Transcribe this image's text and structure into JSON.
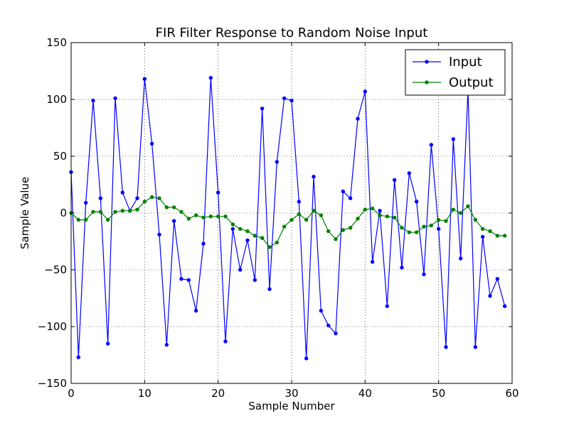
{
  "colors": {
    "input": "#0000ff",
    "output": "#008000",
    "grid": "#000000",
    "frame": "#000000",
    "background": "#ffffff"
  },
  "chart_data": {
    "type": "line",
    "title": "FIR Filter Response to Random Noise Input",
    "xlabel": "Sample Number",
    "ylabel": "Sample Value",
    "xlim": [
      0,
      60
    ],
    "ylim": [
      -150,
      150
    ],
    "xticks": [
      0,
      10,
      20,
      30,
      40,
      50,
      60
    ],
    "yticks": [
      -150,
      -100,
      -50,
      0,
      50,
      100,
      150
    ],
    "xtick_labels": [
      "0",
      "10",
      "20",
      "30",
      "40",
      "50",
      "60"
    ],
    "ytick_labels": [
      "−150",
      "−100",
      "−50",
      "0",
      "50",
      "100",
      "150"
    ],
    "grid": true,
    "legend_position": "top-right",
    "series": [
      {
        "name": "Input",
        "color": "#0000ff",
        "values": [
          36,
          -127,
          9,
          99,
          13,
          -115,
          101,
          18,
          2,
          13,
          118,
          61,
          -19,
          -116,
          -7,
          -58,
          -59,
          -86,
          -27,
          119,
          18,
          -113,
          -14,
          -50,
          -24,
          -59,
          92,
          -67,
          45,
          101,
          99,
          10,
          -128,
          32,
          -86,
          -99,
          -106,
          19,
          13,
          83,
          107,
          -43,
          2,
          -82,
          29,
          -48,
          35,
          10,
          -54,
          60,
          -14,
          -118,
          65,
          -40,
          108,
          -118,
          -21,
          -73,
          -58,
          -82
        ]
      },
      {
        "name": "Output",
        "color": "#008000",
        "values": [
          0,
          -6,
          -6,
          1,
          1,
          -6,
          1,
          2,
          2,
          3,
          10,
          14,
          13,
          5,
          5,
          1,
          -5,
          -2,
          -4,
          -3,
          -3,
          -3,
          -10,
          -14,
          -16,
          -20,
          -22,
          -30,
          -26,
          -12,
          -6,
          -1,
          -6,
          2,
          -2,
          -16,
          -23,
          -15,
          -13,
          -5,
          3,
          4,
          -2,
          -3,
          -4,
          -13,
          -17,
          -17,
          -12,
          -11,
          -6,
          -7,
          3,
          0,
          6,
          -6,
          -14,
          -16,
          -20,
          -20
        ]
      }
    ]
  }
}
